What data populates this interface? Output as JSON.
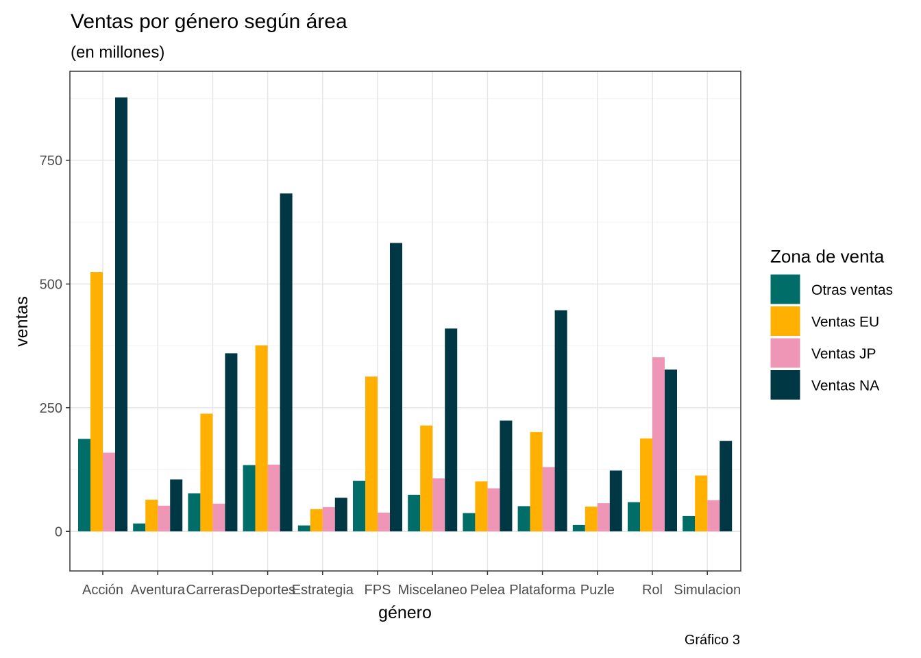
{
  "chart_data": {
    "type": "bar",
    "title": "Ventas por género según área",
    "subtitle": "(en millones)",
    "xlabel": "género",
    "ylabel": "ventas",
    "caption": "Gráfico 3",
    "ylim": [
      -80,
      930
    ],
    "yticks": [
      0,
      250,
      500,
      750
    ],
    "grid": true,
    "legend_position": "right",
    "legend_title": "Zona de venta",
    "categories": [
      "Acción",
      "Aventura",
      "Carreras",
      "Deportes",
      "Estrategia",
      "FPS",
      "Miscelaneo",
      "Pelea",
      "Plataforma",
      "Puzle",
      "Rol",
      "Simulacion"
    ],
    "series": [
      {
        "name": "Otras ventas",
        "color": "#006D68",
        "values": [
          187,
          16,
          77,
          134,
          12,
          102,
          74,
          37,
          51,
          13,
          59,
          31
        ]
      },
      {
        "name": "Ventas EU",
        "color": "#FFB000",
        "values": [
          524,
          64,
          238,
          376,
          45,
          313,
          214,
          101,
          201,
          50,
          188,
          113
        ]
      },
      {
        "name": "Ventas JP",
        "color": "#EF95B5",
        "values": [
          159,
          52,
          56,
          135,
          49,
          38,
          107,
          87,
          130,
          57,
          352,
          63
        ]
      },
      {
        "name": "Ventas NA",
        "color": "#003744",
        "values": [
          877,
          105,
          360,
          683,
          68,
          583,
          410,
          224,
          447,
          123,
          327,
          183
        ]
      }
    ]
  }
}
